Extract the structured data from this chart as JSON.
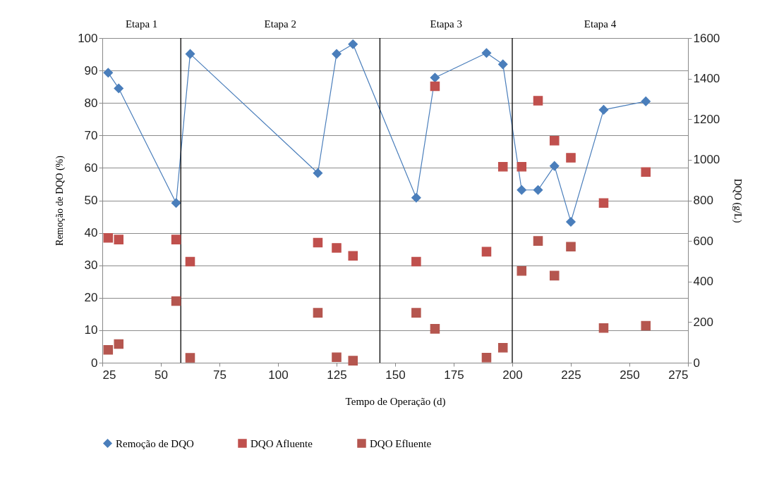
{
  "chart_data": {
    "type": "line",
    "xlabel": "Tempo de Operação (d)",
    "ylabel": "Remoção de DQO (%)",
    "y2label": "DQO (g/L)",
    "x": [
      27.5,
      32,
      56.5,
      62.5,
      117,
      125,
      132,
      159,
      167,
      189,
      196,
      204,
      211,
      218,
      225,
      239,
      257
    ],
    "series": [
      {
        "name": "Remoção de DQO",
        "marker": "diamond",
        "color": "#4a7ebb",
        "values": [
          89.3,
          84.5,
          49.2,
          95.1,
          58.4,
          95.1,
          98.1,
          50.8,
          87.8,
          95.4,
          91.9,
          53.2,
          53.2,
          60.6,
          43.4,
          77.9,
          80.5
        ]
      },
      {
        "name": "DQO Afluente",
        "type": "scatter",
        "marker": "square",
        "axis": "y2",
        "color": "#c0504d",
        "values": [
          615,
          607,
          607,
          498,
          592,
          566,
          527,
          498,
          1362,
          547,
          966,
          966,
          1291,
          1094,
          1010,
          787,
          940
        ]
      },
      {
        "name": "DQO Efluente",
        "type": "scatter",
        "marker": "square",
        "axis": "y2",
        "color": "#b5564f",
        "values": [
          63,
          92,
          304,
          24,
          246,
          27,
          10,
          246,
          167,
          25,
          74,
          452,
          600,
          429,
          572,
          171,
          182
        ]
      }
    ],
    "xlim": [
      25,
      275
    ],
    "xticks": [
      25,
      50,
      75,
      100,
      125,
      150,
      175,
      200,
      225,
      250,
      275
    ],
    "ylim": [
      0,
      100
    ],
    "yticks": [
      0,
      10,
      20,
      30,
      40,
      50,
      60,
      70,
      80,
      90,
      100
    ],
    "y2lim": [
      0,
      1600
    ],
    "y2ticks": [
      0,
      200,
      400,
      600,
      800,
      {
        "value": 1000,
        "label": "1000"
      },
      {
        "value": 1200,
        "label": "1200"
      },
      {
        "value": 1400,
        "label": "1400"
      },
      {
        "value": 1600,
        "label": "1600"
      }
    ],
    "ref_lines": [
      {
        "axis": "x",
        "value": 58.5,
        "color": "#000000"
      },
      {
        "axis": "x",
        "value": 143.5,
        "color": "#000000"
      },
      {
        "axis": "x",
        "value": 200,
        "color": "#000000"
      }
    ],
    "annotations": [
      "Etapa 1",
      "Etapa 2",
      "Etapa 3",
      "Etapa 4"
    ],
    "grid": "y",
    "legend": "bottom"
  }
}
